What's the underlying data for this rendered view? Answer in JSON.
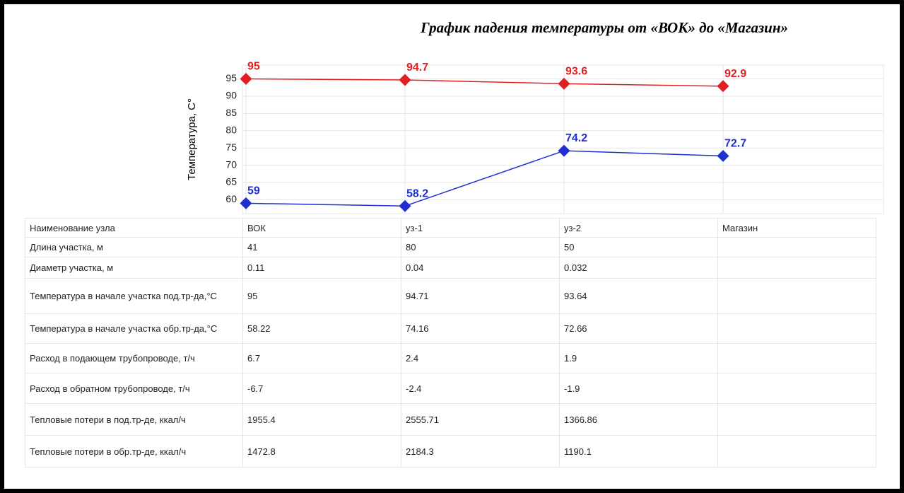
{
  "chart_data": {
    "type": "line",
    "title": "График падения температуры от «ВОК» до «Магазин»",
    "y_label": "Температура, С°",
    "categories": [
      "ВОК",
      "уз-1",
      "уз-2",
      "Магазин"
    ],
    "series": [
      {
        "color": "#e02020",
        "values": [
          95,
          94.7,
          93.6,
          92.9
        ]
      },
      {
        "color": "#1f2fd0",
        "values": [
          59,
          58.2,
          74.2,
          72.7
        ]
      }
    ],
    "ylim": [
      56,
      99
    ],
    "yticks": [
      60,
      65,
      70,
      75,
      80,
      85,
      90,
      95
    ],
    "grid": true
  },
  "table": {
    "rows": [
      [
        "Наименование узла",
        "ВОК",
        "уз-1",
        "уз-2",
        "Магазин"
      ],
      [
        "Длина участка, м",
        "41",
        "80",
        "50"
      ],
      [
        "Диаметр участка, м",
        "0.11",
        "0.04",
        "0.032"
      ],
      [
        "Температура в начале участка под.тр-да,°С",
        "95",
        "94.71",
        "93.64"
      ],
      [
        "Температура в начале участка обр.тр-да,°С",
        "58.22",
        "74.16",
        "72.66"
      ],
      [
        "Расход в подающем трубопроводе, т/ч",
        "6.7",
        "2.4",
        "1.9"
      ],
      [
        "Расход в обратном трубопроводе, т/ч",
        "-6.7",
        "-2.4",
        "-1.9"
      ],
      [
        "Тепловые потери в под.тр-де, ккал/ч",
        "1955.4",
        "2555.71",
        "1366.86"
      ],
      [
        "Тепловые потери в обр.тр-де, ккал/ч",
        "1472.8",
        "2184.3",
        "1190.1"
      ]
    ]
  }
}
